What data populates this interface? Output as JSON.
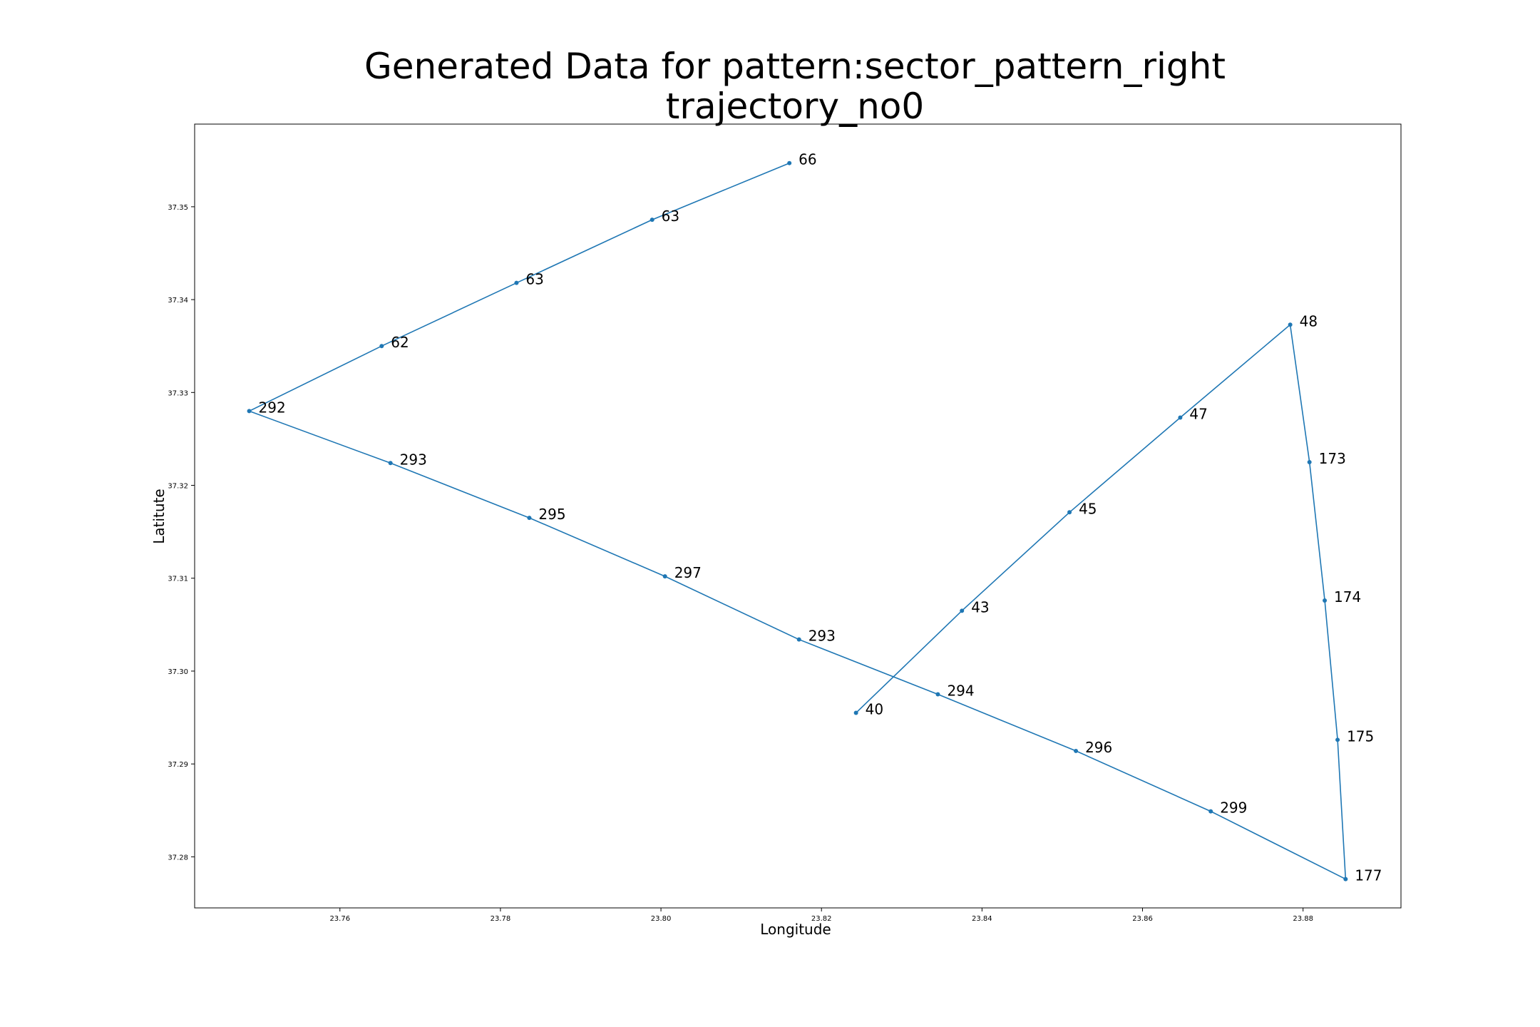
{
  "chart_data": {
    "type": "line",
    "title": [
      "Generated Data for pattern:sector_pattern_right",
      "trajectory_no0"
    ],
    "xlabel": "Longitude",
    "ylabel": "Latitute",
    "xlim": [
      23.7419,
      23.8922
    ],
    "ylim": [
      37.2745,
      37.3589
    ],
    "xticks": [
      "23.76",
      "23.78",
      "23.80",
      "23.82",
      "23.84",
      "23.86",
      "23.88"
    ],
    "yticks": [
      "37.28",
      "37.29",
      "37.30",
      "37.31",
      "37.32",
      "37.33",
      "37.34",
      "37.35"
    ],
    "grid": false,
    "legend": "none",
    "color": "#1f77b4",
    "series": [
      {
        "x": [
          23.816,
          23.7989,
          23.782,
          23.7652,
          23.7487,
          23.7663,
          23.7836,
          23.8005,
          23.8172,
          23.8345,
          23.8517,
          23.8685,
          23.8853,
          23.8843,
          23.8827,
          23.8808,
          23.8784,
          23.8647,
          23.8509,
          23.8375,
          23.8243
        ],
        "y": [
          37.3547,
          37.3486,
          37.3418,
          37.335,
          37.328,
          37.3224,
          37.3165,
          37.3102,
          37.3034,
          37.2975,
          37.2914,
          37.2849,
          37.2776,
          37.2926,
          37.3076,
          37.3225,
          37.3373,
          37.3273,
          37.3171,
          37.3065,
          37.2955
        ],
        "labels": [
          "66",
          "63",
          "63",
          "62",
          "292",
          "293",
          "295",
          "297",
          "293",
          "294",
          "296",
          "299",
          "177",
          "175",
          "174",
          "173",
          "48",
          "47",
          "45",
          "43",
          "40"
        ]
      }
    ]
  }
}
